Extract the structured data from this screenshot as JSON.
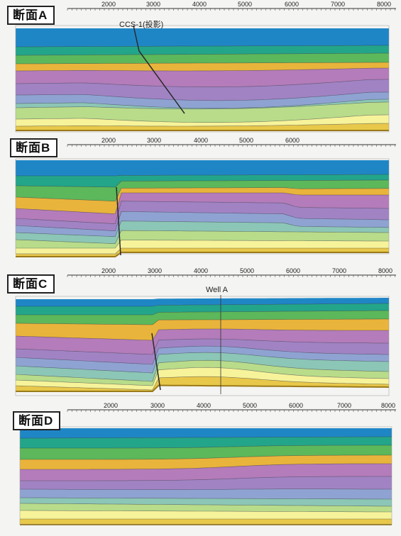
{
  "colors": {
    "layers": [
      "#1f86c6",
      "#23a58a",
      "#5cb85a",
      "#e9b43b",
      "#b47cba",
      "#a183c4",
      "#8fa3d2",
      "#8cc6b6",
      "#b8dc8a",
      "#f6f39a",
      "#e8c84a"
    ],
    "fault": "#2a2a2a",
    "horizon": "#2c2c3a"
  },
  "sections": [
    {
      "id": "A",
      "label": "断面A",
      "tick_labels": [
        "2000",
        "3000",
        "4000",
        "5000",
        "6000",
        "7000",
        "8000"
      ],
      "annotation": "CCS-1(投影)"
    },
    {
      "id": "B",
      "label": "断面B",
      "tick_labels": [
        "2000",
        "3000",
        "4000",
        "5000",
        "6000"
      ],
      "annotation": ""
    },
    {
      "id": "C",
      "label": "断面C",
      "tick_labels": [
        "2000",
        "3000",
        "4000",
        "5000",
        "6000",
        "7000",
        "8000"
      ],
      "annotation": "Well A"
    },
    {
      "id": "D",
      "label": "断面D",
      "tick_labels": [
        "2000",
        "3000",
        "4000",
        "5000",
        "6000",
        "7000",
        "8000"
      ],
      "annotation": ""
    }
  ]
}
